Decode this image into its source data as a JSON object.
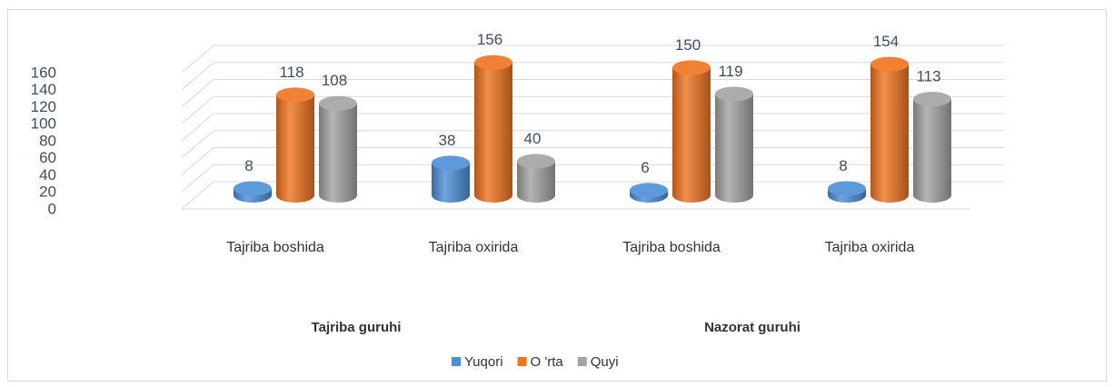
{
  "chart_data": {
    "type": "bar",
    "categories": [
      "Tajriba boshida",
      "Tajriba oxirida",
      "Tajriba boshida",
      "Tajriba oxirida"
    ],
    "groups": [
      "Tajriba guruhi",
      "Nazorat guruhi"
    ],
    "series": [
      {
        "name": "Yuqori",
        "color": "#4a8fd8",
        "values": [
          8,
          38,
          6,
          8
        ]
      },
      {
        "name": "O 'rta",
        "color": "#f0731f",
        "values": [
          118,
          156,
          150,
          154
        ]
      },
      {
        "name": "Quyi",
        "color": "#a3a3a3",
        "values": [
          108,
          40,
          119,
          113
        ]
      }
    ],
    "ylim": [
      0,
      160
    ],
    "yticks": [
      0,
      20,
      40,
      60,
      80,
      100,
      120,
      140,
      160
    ],
    "grid": true
  }
}
